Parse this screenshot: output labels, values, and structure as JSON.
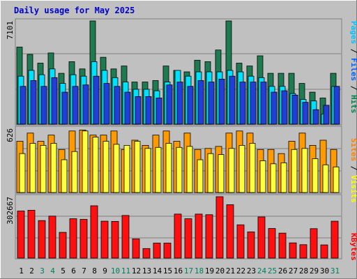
{
  "chart_data": [
    {
      "type": "bar",
      "panel": "hits-files-pages",
      "title": "Daily usage for May 2025",
      "ylabel_max": "7101",
      "ylim": [
        0,
        7101
      ],
      "legend": [
        {
          "label": "Pages",
          "color": "#00c0ff"
        },
        {
          "label": "Files",
          "color": "#0060ff"
        },
        {
          "label": "Hits",
          "color": "#007f4f"
        }
      ],
      "legend_separator": " / ",
      "categories": [
        "1",
        "2",
        "3",
        "4",
        "5",
        "6",
        "7",
        "8",
        "9",
        "10",
        "11",
        "12",
        "13",
        "14",
        "15",
        "16",
        "17",
        "18",
        "19",
        "20",
        "21",
        "22",
        "23",
        "24",
        "25",
        "26",
        "27",
        "28",
        "29",
        "30",
        "31"
      ],
      "series": [
        {
          "name": "Hits",
          "color": "#1e7a50",
          "values": [
            5300,
            4800,
            4200,
            4900,
            3500,
            4300,
            3800,
            7101,
            4600,
            3800,
            4000,
            2900,
            2900,
            3000,
            4000,
            3700,
            3600,
            4400,
            4300,
            5100,
            7101,
            4200,
            4000,
            4700,
            3500,
            3500,
            3500,
            2800,
            2200,
            1800,
            3500
          ]
        },
        {
          "name": "Files",
          "color": "#1f3fd8",
          "values": [
            2600,
            3000,
            2600,
            3200,
            2200,
            2600,
            2700,
            3300,
            2800,
            2600,
            2200,
            1900,
            1900,
            1800,
            2700,
            2900,
            2600,
            3000,
            2900,
            3100,
            3300,
            2900,
            2900,
            2900,
            2200,
            2300,
            2000,
            1500,
            1000,
            1300,
            2600
          ]
        },
        {
          "name": "Pages",
          "color": "#00e0ff",
          "values": [
            3300,
            3700,
            3400,
            3800,
            2800,
            3400,
            3300,
            4300,
            3700,
            3200,
            2900,
            2400,
            2400,
            2300,
            2900,
            3700,
            3300,
            3600,
            3600,
            3600,
            3700,
            3600,
            3300,
            3200,
            2600,
            2600,
            2100,
            1700,
            1600,
            700,
            2600
          ]
        }
      ]
    },
    {
      "type": "bar",
      "panel": "visits-sites",
      "ylabel_max": "626",
      "ylim": [
        0,
        626
      ],
      "legend": [
        {
          "label": "Sites",
          "color": "#ff8000"
        },
        {
          "label": "Visits",
          "color": "#ffff00"
        }
      ],
      "legend_separator": " / ",
      "categories": [
        "1",
        "2",
        "3",
        "4",
        "5",
        "6",
        "7",
        "8",
        "9",
        "10",
        "11",
        "12",
        "13",
        "14",
        "15",
        "16",
        "17",
        "18",
        "19",
        "20",
        "21",
        "22",
        "23",
        "24",
        "25",
        "26",
        "27",
        "28",
        "29",
        "30",
        "31"
      ],
      "series": [
        {
          "name": "Visits",
          "color": "#ffff40",
          "values": [
            380,
            480,
            460,
            480,
            320,
            400,
            600,
            540,
            500,
            470,
            460,
            500,
            430,
            440,
            480,
            440,
            450,
            320,
            380,
            370,
            430,
            460,
            480,
            310,
            280,
            290,
            420,
            430,
            330,
            270,
            250
          ]
        },
        {
          "name": "Sites",
          "color": "#ff9a00",
          "values": [
            500,
            580,
            500,
            560,
            420,
            600,
            610,
            560,
            560,
            600,
            420,
            510,
            460,
            560,
            600,
            500,
            580,
            420,
            430,
            450,
            580,
            600,
            580,
            420,
            420,
            380,
            500,
            580,
            460,
            510,
            420
          ]
        }
      ]
    },
    {
      "type": "bar",
      "panel": "kbytes",
      "ylabel_max": "302667",
      "ylim": [
        0,
        302667
      ],
      "legend": [
        {
          "label": "KBytes",
          "color": "#ff0000"
        }
      ],
      "categories": [
        "1",
        "2",
        "3",
        "4",
        "5",
        "6",
        "7",
        "8",
        "9",
        "10",
        "11",
        "12",
        "13",
        "14",
        "15",
        "16",
        "17",
        "18",
        "19",
        "20",
        "21",
        "22",
        "23",
        "24",
        "25",
        "26",
        "27",
        "28",
        "29",
        "30",
        "31"
      ],
      "series": [
        {
          "name": "KBytes",
          "color": "#ff1010",
          "values": [
            232000,
            236000,
            185000,
            207000,
            127000,
            194000,
            191000,
            258000,
            182000,
            181000,
            210000,
            95000,
            47000,
            74000,
            74000,
            217000,
            194000,
            217000,
            214000,
            302667,
            263000,
            164000,
            129000,
            203000,
            146000,
            123000,
            75000,
            66000,
            145000,
            65000,
            182000
          ]
        }
      ]
    }
  ],
  "day_labels": [
    {
      "label": "1",
      "color": "#000000"
    },
    {
      "label": "2",
      "color": "#000000"
    },
    {
      "label": "3",
      "color": "#00805c"
    },
    {
      "label": "4",
      "color": "#00805c"
    },
    {
      "label": "5",
      "color": "#000000"
    },
    {
      "label": "6",
      "color": "#000000"
    },
    {
      "label": "7",
      "color": "#000000"
    },
    {
      "label": "8",
      "color": "#000000"
    },
    {
      "label": "9",
      "color": "#000000"
    },
    {
      "label": "10",
      "color": "#00805c"
    },
    {
      "label": "11",
      "color": "#00805c"
    },
    {
      "label": "12",
      "color": "#000000"
    },
    {
      "label": "13",
      "color": "#000000"
    },
    {
      "label": "14",
      "color": "#000000"
    },
    {
      "label": "15",
      "color": "#000000"
    },
    {
      "label": "16",
      "color": "#000000"
    },
    {
      "label": "17",
      "color": "#00805c"
    },
    {
      "label": "18",
      "color": "#00805c"
    },
    {
      "label": "19",
      "color": "#000000"
    },
    {
      "label": "20",
      "color": "#000000"
    },
    {
      "label": "21",
      "color": "#000000"
    },
    {
      "label": "22",
      "color": "#000000"
    },
    {
      "label": "23",
      "color": "#000000"
    },
    {
      "label": "24",
      "color": "#00805c"
    },
    {
      "label": "25",
      "color": "#00805c"
    },
    {
      "label": "26",
      "color": "#000000"
    },
    {
      "label": "27",
      "color": "#000000"
    },
    {
      "label": "28",
      "color": "#000000"
    },
    {
      "label": "29",
      "color": "#000000"
    },
    {
      "label": "30",
      "color": "#000000"
    },
    {
      "label": "31",
      "color": "#00805c"
    }
  ],
  "colors": {
    "background": "#c0c0c0",
    "panel": "#c0c0c0",
    "title": "#0000ff",
    "gridline": "#808080"
  }
}
